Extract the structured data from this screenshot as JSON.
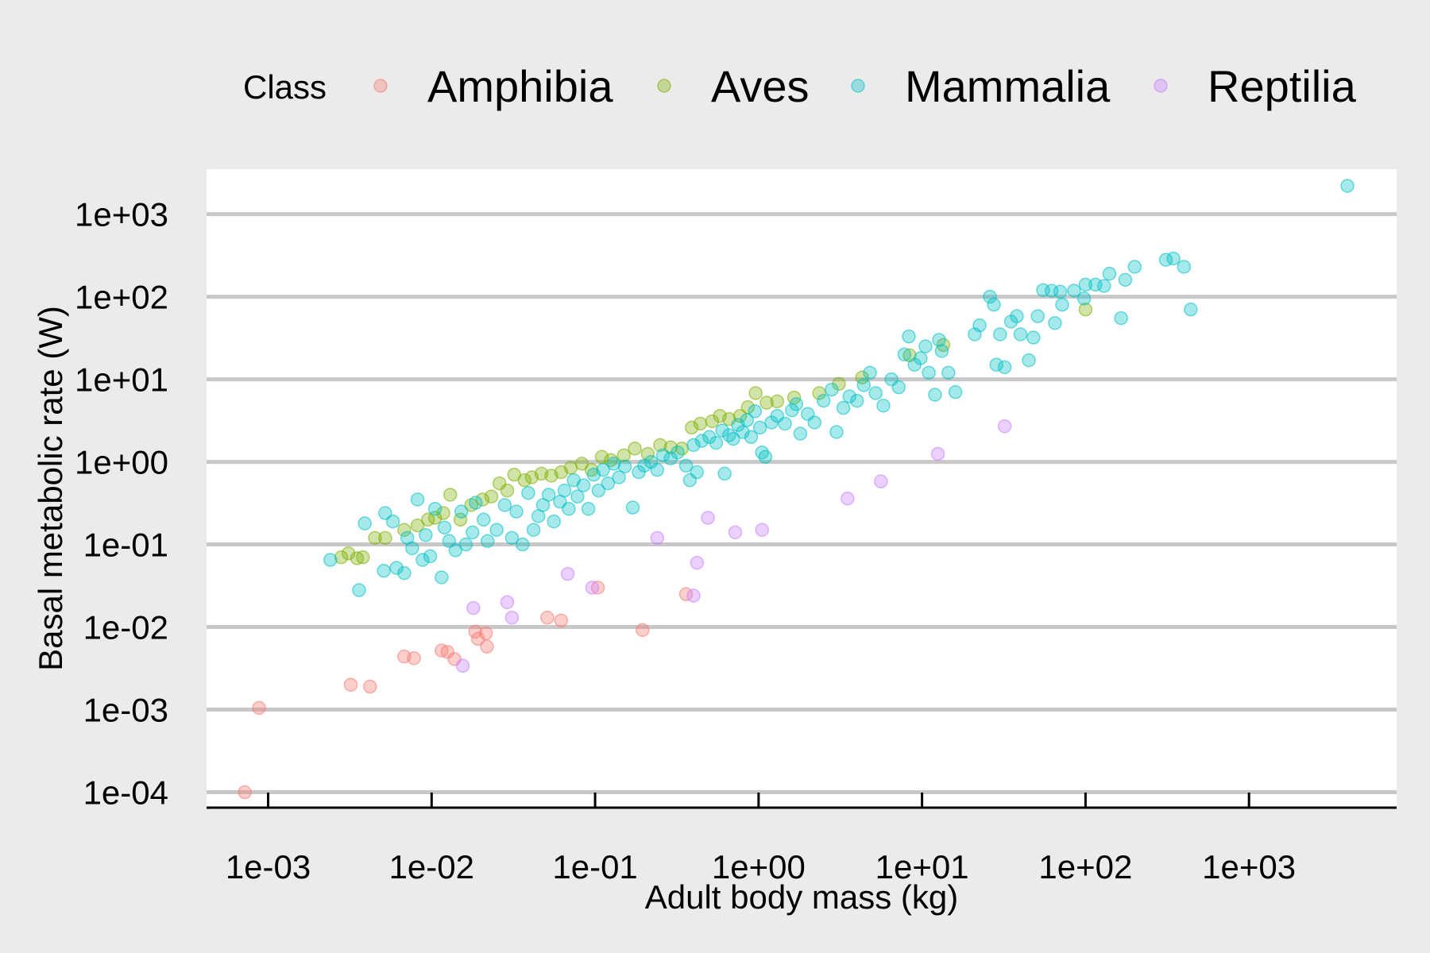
{
  "chart_data": {
    "type": "scatter",
    "xlabel": "Adult body mass (kg)",
    "ylabel": "Basal metabolic rate (W)",
    "x_scale": "log10",
    "y_scale": "log10",
    "xlim": [
      0.00042,
      8000
    ],
    "ylim": [
      6.5e-05,
      3500
    ],
    "x_ticks": [
      0.001,
      0.01,
      0.1,
      1,
      10,
      100,
      1000
    ],
    "x_tick_labels": [
      "1e-03",
      "1e-02",
      "1e-01",
      "1e+00",
      "1e+01",
      "1e+02",
      "1e+03"
    ],
    "y_ticks": [
      0.0001,
      0.001,
      0.01,
      0.1,
      1,
      10,
      100,
      1000
    ],
    "y_tick_labels": [
      "1e-04",
      "1e-03",
      "1e-02",
      "1e-01",
      "1e+00",
      "1e+01",
      "1e+02",
      "1e+03"
    ],
    "grid": "horizontal major lines",
    "legend": {
      "title": "Class",
      "position": "top"
    },
    "series": [
      {
        "name": "Amphibia",
        "color": "#F8766D",
        "points": [
          [
            0.00072,
            0.0001
          ],
          [
            0.00088,
            0.00105
          ],
          [
            0.0032,
            0.002
          ],
          [
            0.0042,
            0.0019
          ],
          [
            0.0068,
            0.0044
          ],
          [
            0.0078,
            0.0042
          ],
          [
            0.0115,
            0.0052
          ],
          [
            0.0125,
            0.005
          ],
          [
            0.0138,
            0.0041
          ],
          [
            0.0185,
            0.0088
          ],
          [
            0.0192,
            0.0072
          ],
          [
            0.0215,
            0.0084
          ],
          [
            0.0218,
            0.0058
          ],
          [
            0.051,
            0.013
          ],
          [
            0.062,
            0.012
          ],
          [
            0.104,
            0.03
          ],
          [
            0.195,
            0.0092
          ],
          [
            0.36,
            0.025
          ]
        ]
      },
      {
        "name": "Aves",
        "color": "#7CAE00",
        "points": [
          [
            0.0028,
            0.07
          ],
          [
            0.0031,
            0.078
          ],
          [
            0.0035,
            0.068
          ],
          [
            0.0038,
            0.07
          ],
          [
            0.0045,
            0.12
          ],
          [
            0.0052,
            0.12
          ],
          [
            0.0068,
            0.15
          ],
          [
            0.0082,
            0.17
          ],
          [
            0.0095,
            0.2
          ],
          [
            0.0105,
            0.21
          ],
          [
            0.0118,
            0.24
          ],
          [
            0.013,
            0.4
          ],
          [
            0.015,
            0.2
          ],
          [
            0.0175,
            0.3
          ],
          [
            0.0205,
            0.35
          ],
          [
            0.0232,
            0.38
          ],
          [
            0.026,
            0.55
          ],
          [
            0.029,
            0.45
          ],
          [
            0.032,
            0.7
          ],
          [
            0.037,
            0.6
          ],
          [
            0.041,
            0.65
          ],
          [
            0.047,
            0.72
          ],
          [
            0.054,
            0.68
          ],
          [
            0.062,
            0.75
          ],
          [
            0.071,
            0.85
          ],
          [
            0.083,
            0.95
          ],
          [
            0.095,
            0.8
          ],
          [
            0.11,
            1.15
          ],
          [
            0.125,
            1.05
          ],
          [
            0.15,
            1.2
          ],
          [
            0.175,
            1.45
          ],
          [
            0.21,
            1.25
          ],
          [
            0.25,
            1.6
          ],
          [
            0.29,
            1.5
          ],
          [
            0.34,
            1.45
          ],
          [
            0.39,
            2.6
          ],
          [
            0.44,
            2.9
          ],
          [
            0.52,
            3.1
          ],
          [
            0.58,
            3.6
          ],
          [
            0.66,
            3.3
          ],
          [
            0.77,
            3.6
          ],
          [
            0.86,
            4.6
          ],
          [
            0.96,
            6.8
          ],
          [
            1.12,
            5.2
          ],
          [
            1.3,
            5.4
          ],
          [
            1.65,
            6.0
          ],
          [
            2.35,
            6.8
          ],
          [
            3.1,
            8.8
          ],
          [
            4.3,
            10.5
          ],
          [
            8.4,
            19.5
          ],
          [
            13.5,
            26
          ],
          [
            100,
            70
          ]
        ]
      },
      {
        "name": "Mammalia",
        "color": "#00BFC4",
        "points": [
          [
            0.0024,
            0.065
          ],
          [
            0.0036,
            0.028
          ],
          [
            0.0039,
            0.18
          ],
          [
            0.0051,
            0.048
          ],
          [
            0.0052,
            0.24
          ],
          [
            0.0058,
            0.19
          ],
          [
            0.0061,
            0.052
          ],
          [
            0.0068,
            0.045
          ],
          [
            0.0071,
            0.12
          ],
          [
            0.0076,
            0.09
          ],
          [
            0.0082,
            0.35
          ],
          [
            0.0088,
            0.065
          ],
          [
            0.0092,
            0.13
          ],
          [
            0.0098,
            0.072
          ],
          [
            0.0105,
            0.27
          ],
          [
            0.0115,
            0.04
          ],
          [
            0.012,
            0.16
          ],
          [
            0.0128,
            0.11
          ],
          [
            0.014,
            0.085
          ],
          [
            0.0152,
            0.25
          ],
          [
            0.0162,
            0.1
          ],
          [
            0.0178,
            0.14
          ],
          [
            0.0186,
            0.32
          ],
          [
            0.0208,
            0.2
          ],
          [
            0.022,
            0.11
          ],
          [
            0.025,
            0.15
          ],
          [
            0.028,
            0.3
          ],
          [
            0.031,
            0.12
          ],
          [
            0.033,
            0.25
          ],
          [
            0.036,
            0.1
          ],
          [
            0.039,
            0.42
          ],
          [
            0.042,
            0.15
          ],
          [
            0.045,
            0.22
          ],
          [
            0.048,
            0.3
          ],
          [
            0.052,
            0.4
          ],
          [
            0.056,
            0.19
          ],
          [
            0.061,
            0.33
          ],
          [
            0.065,
            0.45
          ],
          [
            0.069,
            0.27
          ],
          [
            0.074,
            0.6
          ],
          [
            0.078,
            0.38
          ],
          [
            0.085,
            0.52
          ],
          [
            0.091,
            0.27
          ],
          [
            0.098,
            0.7
          ],
          [
            0.105,
            0.45
          ],
          [
            0.112,
            0.8
          ],
          [
            0.12,
            0.55
          ],
          [
            0.13,
            0.95
          ],
          [
            0.14,
            0.65
          ],
          [
            0.152,
            0.88
          ],
          [
            0.17,
            0.28
          ],
          [
            0.185,
            0.75
          ],
          [
            0.2,
            0.9
          ],
          [
            0.22,
            1.0
          ],
          [
            0.24,
            0.8
          ],
          [
            0.26,
            1.2
          ],
          [
            0.29,
            1.1
          ],
          [
            0.32,
            1.3
          ],
          [
            0.36,
            0.9
          ],
          [
            0.38,
            0.6
          ],
          [
            0.4,
            1.6
          ],
          [
            0.42,
            0.75
          ],
          [
            0.45,
            1.8
          ],
          [
            0.5,
            2.0
          ],
          [
            0.55,
            1.7
          ],
          [
            0.6,
            2.4
          ],
          [
            0.62,
            0.72
          ],
          [
            0.66,
            2.1
          ],
          [
            0.7,
            1.9
          ],
          [
            0.75,
            2.8
          ],
          [
            0.8,
            2.3
          ],
          [
            0.85,
            3.2
          ],
          [
            0.9,
            2.0
          ],
          [
            0.95,
            4.1
          ],
          [
            1.02,
            2.6
          ],
          [
            1.05,
            1.3
          ],
          [
            1.1,
            1.15
          ],
          [
            1.2,
            3.0
          ],
          [
            1.3,
            3.6
          ],
          [
            1.45,
            2.9
          ],
          [
            1.6,
            4.2
          ],
          [
            1.7,
            5.0
          ],
          [
            1.8,
            2.2
          ],
          [
            2.0,
            3.8
          ],
          [
            2.2,
            3.0
          ],
          [
            2.5,
            5.5
          ],
          [
            2.8,
            7.5
          ],
          [
            3.0,
            2.3
          ],
          [
            3.3,
            4.5
          ],
          [
            3.6,
            6.2
          ],
          [
            4.0,
            5.5
          ],
          [
            4.4,
            8.5
          ],
          [
            4.8,
            12.0
          ],
          [
            5.2,
            6.8
          ],
          [
            5.8,
            4.8
          ],
          [
            6.5,
            10.0
          ],
          [
            7.2,
            8.0
          ],
          [
            7.8,
            20.0
          ],
          [
            8.3,
            33.0
          ],
          [
            9.0,
            15.0
          ],
          [
            9.8,
            18.0
          ],
          [
            10.5,
            25.0
          ],
          [
            11.0,
            12.0
          ],
          [
            12.0,
            6.5
          ],
          [
            12.7,
            30.0
          ],
          [
            13.2,
            22.0
          ],
          [
            14.5,
            12.0
          ],
          [
            16.0,
            7.0
          ],
          [
            21.0,
            35.0
          ],
          [
            22.5,
            45.0
          ],
          [
            26.0,
            100.0
          ],
          [
            27.5,
            80.0
          ],
          [
            28.5,
            15.0
          ],
          [
            30.0,
            35.0
          ],
          [
            32.0,
            14.0
          ],
          [
            35.0,
            50.0
          ],
          [
            38.0,
            58.0
          ],
          [
            40.0,
            35.0
          ],
          [
            45.0,
            17.0
          ],
          [
            48.0,
            32.0
          ],
          [
            51.0,
            58.0
          ],
          [
            55.0,
            120.0
          ],
          [
            62.0,
            118.0
          ],
          [
            65.0,
            48.0
          ],
          [
            70.0,
            115.0
          ],
          [
            72.0,
            80.0
          ],
          [
            85.0,
            118.0
          ],
          [
            98.0,
            95.0
          ],
          [
            100.0,
            140.0
          ],
          [
            115.0,
            140.0
          ],
          [
            130.0,
            135.0
          ],
          [
            140.0,
            190.0
          ],
          [
            165.0,
            55.0
          ],
          [
            175.0,
            160.0
          ],
          [
            200.0,
            230.0
          ],
          [
            310.0,
            280.0
          ],
          [
            345.0,
            290.0
          ],
          [
            400.0,
            230.0
          ],
          [
            440.0,
            70.0
          ],
          [
            4000.0,
            2200.0
          ]
        ]
      },
      {
        "name": "Reptilia",
        "color": "#C77CFF",
        "points": [
          [
            0.0155,
            0.0034
          ],
          [
            0.018,
            0.017
          ],
          [
            0.029,
            0.02
          ],
          [
            0.031,
            0.013
          ],
          [
            0.068,
            0.044
          ],
          [
            0.096,
            0.03
          ],
          [
            0.24,
            0.12
          ],
          [
            0.4,
            0.024
          ],
          [
            0.42,
            0.06
          ],
          [
            0.49,
            0.21
          ],
          [
            0.72,
            0.14
          ],
          [
            1.05,
            0.15
          ],
          [
            3.5,
            0.36
          ],
          [
            5.6,
            0.58
          ],
          [
            12.5,
            1.25
          ],
          [
            32.0,
            2.7
          ]
        ]
      }
    ]
  }
}
